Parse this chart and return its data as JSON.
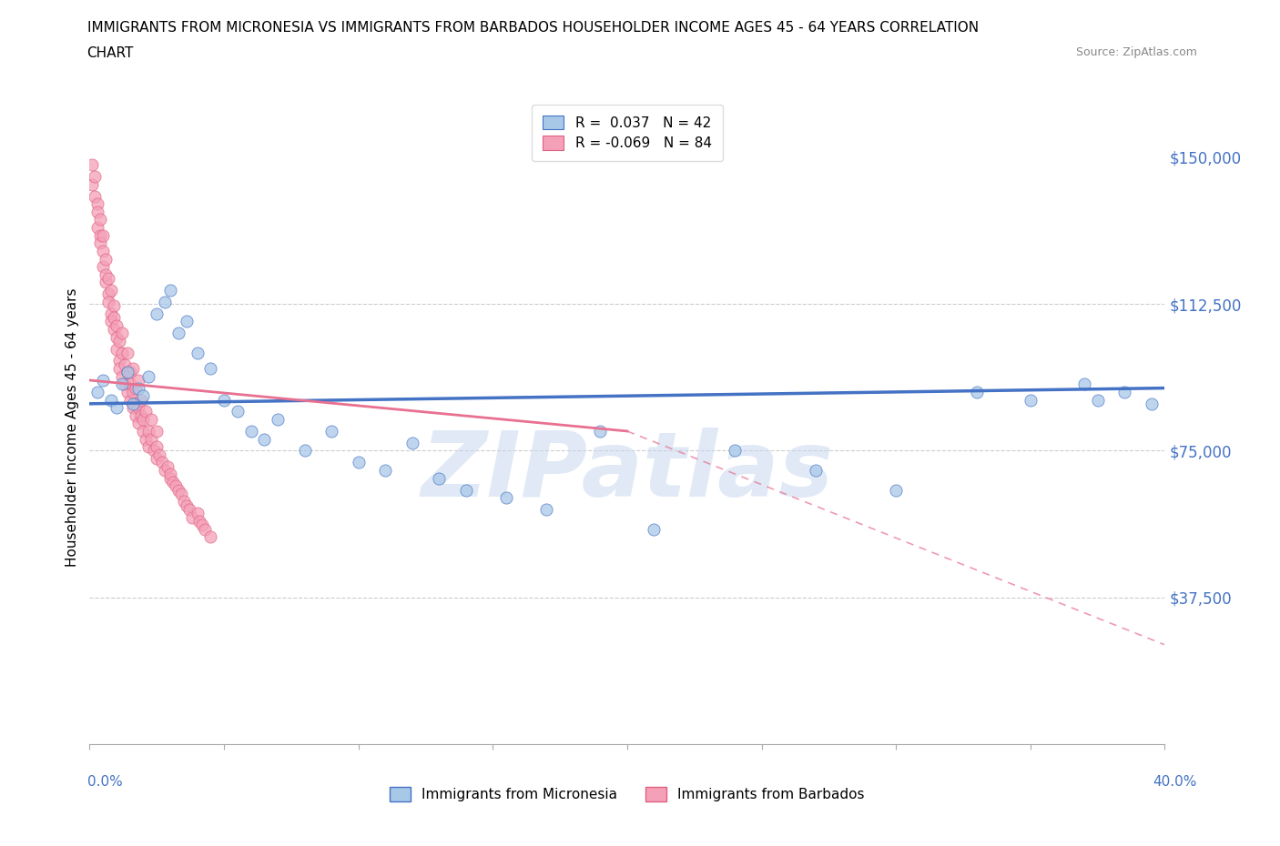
{
  "title_line1": "IMMIGRANTS FROM MICRONESIA VS IMMIGRANTS FROM BARBADOS HOUSEHOLDER INCOME AGES 45 - 64 YEARS CORRELATION",
  "title_line2": "CHART",
  "source": "Source: ZipAtlas.com",
  "ylabel": "Householder Income Ages 45 - 64 years",
  "xlim": [
    0.0,
    0.4
  ],
  "ylim": [
    0,
    162000
  ],
  "yticks": [
    0,
    37500,
    75000,
    112500,
    150000
  ],
  "ytick_labels": [
    "",
    "$37,500",
    "$75,000",
    "$112,500",
    "$150,000"
  ],
  "color_micronesia_fill": "#a8c8e8",
  "color_micronesia_edge": "#4472c4",
  "color_barbados_fill": "#f4a0b8",
  "color_barbados_edge": "#e06080",
  "trendline_micronesia_color": "#4472c4",
  "trendline_barbados_color": "#e87090",
  "watermark": "ZIPatlas",
  "watermark_color": "#c8d8ee",
  "label_micronesia": "Immigrants from Micronesia",
  "label_barbados": "Immigrants from Barbados",
  "legend_r1_label": "R =  0.037   N = 42",
  "legend_r2_label": "R = -0.069   N = 84",
  "mic_x": [
    0.003,
    0.005,
    0.008,
    0.01,
    0.012,
    0.014,
    0.016,
    0.018,
    0.02,
    0.022,
    0.025,
    0.028,
    0.03,
    0.033,
    0.036,
    0.04,
    0.045,
    0.05,
    0.055,
    0.06,
    0.065,
    0.07,
    0.08,
    0.09,
    0.1,
    0.11,
    0.12,
    0.13,
    0.14,
    0.155,
    0.17,
    0.19,
    0.21,
    0.24,
    0.27,
    0.3,
    0.33,
    0.35,
    0.37,
    0.385,
    0.395,
    0.375
  ],
  "mic_y": [
    90000,
    93000,
    88000,
    86000,
    92000,
    95000,
    87000,
    91000,
    89000,
    94000,
    110000,
    113000,
    116000,
    105000,
    108000,
    100000,
    96000,
    88000,
    85000,
    80000,
    78000,
    83000,
    75000,
    80000,
    72000,
    70000,
    77000,
    68000,
    65000,
    63000,
    60000,
    80000,
    55000,
    75000,
    70000,
    65000,
    90000,
    88000,
    92000,
    90000,
    87000,
    88000
  ],
  "bar_x": [
    0.001,
    0.001,
    0.002,
    0.002,
    0.003,
    0.003,
    0.003,
    0.004,
    0.004,
    0.004,
    0.005,
    0.005,
    0.005,
    0.006,
    0.006,
    0.006,
    0.007,
    0.007,
    0.007,
    0.008,
    0.008,
    0.008,
    0.009,
    0.009,
    0.009,
    0.01,
    0.01,
    0.01,
    0.011,
    0.011,
    0.011,
    0.012,
    0.012,
    0.013,
    0.013,
    0.014,
    0.014,
    0.015,
    0.015,
    0.016,
    0.016,
    0.017,
    0.017,
    0.018,
    0.018,
    0.019,
    0.02,
    0.02,
    0.021,
    0.022,
    0.022,
    0.023,
    0.024,
    0.025,
    0.025,
    0.026,
    0.027,
    0.028,
    0.029,
    0.03,
    0.03,
    0.031,
    0.032,
    0.033,
    0.034,
    0.035,
    0.036,
    0.037,
    0.038,
    0.04,
    0.041,
    0.042,
    0.043,
    0.045,
    0.015,
    0.017,
    0.019,
    0.021,
    0.023,
    0.025,
    0.012,
    0.014,
    0.016,
    0.018
  ],
  "bar_y": [
    148000,
    143000,
    145000,
    140000,
    138000,
    132000,
    136000,
    130000,
    134000,
    128000,
    126000,
    122000,
    130000,
    118000,
    124000,
    120000,
    115000,
    119000,
    113000,
    110000,
    116000,
    108000,
    112000,
    106000,
    109000,
    104000,
    107000,
    101000,
    98000,
    103000,
    96000,
    100000,
    94000,
    97000,
    92000,
    95000,
    90000,
    92000,
    88000,
    90000,
    86000,
    87000,
    84000,
    86000,
    82000,
    84000,
    80000,
    83000,
    78000,
    80000,
    76000,
    78000,
    75000,
    76000,
    73000,
    74000,
    72000,
    70000,
    71000,
    68000,
    69000,
    67000,
    66000,
    65000,
    64000,
    62000,
    61000,
    60000,
    58000,
    59000,
    57000,
    56000,
    55000,
    53000,
    95000,
    91000,
    88000,
    85000,
    83000,
    80000,
    105000,
    100000,
    96000,
    93000
  ]
}
